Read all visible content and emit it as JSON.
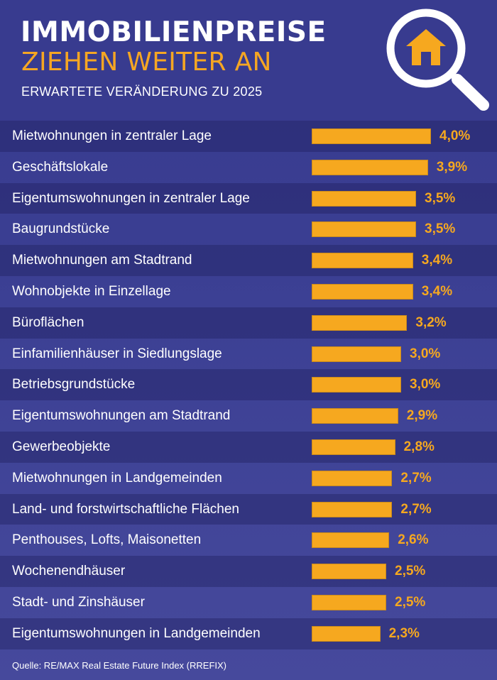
{
  "header": {
    "title_line1": "IMMOBILIENPREISE",
    "title_line2": "ZIEHEN WEITER AN",
    "subtitle": "ERWARTETE VERÄNDERUNG ZU 2025",
    "icon": "magnifier-house-icon"
  },
  "colors": {
    "background": "#3b3f93",
    "bar": "#f6a81f",
    "value_text": "#f6a81f",
    "accent_title": "#f5a623",
    "text": "#ffffff"
  },
  "chart_data": {
    "type": "bar",
    "orientation": "horizontal",
    "title": "IMMOBILIENPREISE ZIEHEN WEITER AN",
    "subtitle": "ERWARTETE VERÄNDERUNG ZU 2025",
    "xlabel": "",
    "ylabel": "",
    "unit": "%",
    "xlim": [
      0,
      4.0
    ],
    "grid": false,
    "categories": [
      "Mietwohnungen in zentraler Lage",
      "Geschäftslokale",
      "Eigentumswohnungen in zentraler Lage",
      "Baugrundstücke",
      "Mietwohnungen am Stadtrand",
      "Wohnobjekte in Einzellage",
      "Büroflächen",
      "Einfamilienhäuser in Siedlungslage",
      "Betriebsgrundstücke",
      "Eigentumswohnungen am Stadtrand",
      "Gewerbeobjekte",
      "Mietwohnungen in Landgemeinden",
      "Land- und forstwirtschaftliche Flächen",
      "Penthouses, Lofts, Maisonetten",
      "Wochenendhäuser",
      "Stadt- und Zinshäuser",
      "Eigentumswohnungen in Landgemeinden"
    ],
    "values": [
      4.0,
      3.9,
      3.5,
      3.5,
      3.4,
      3.4,
      3.2,
      3.0,
      3.0,
      2.9,
      2.8,
      2.7,
      2.7,
      2.6,
      2.5,
      2.5,
      2.3
    ],
    "value_labels": [
      "4,0%",
      "3,9%",
      "3,5%",
      "3,5%",
      "3,4%",
      "3,4%",
      "3,2%",
      "3,0%",
      "3,0%",
      "2,9%",
      "2,8%",
      "2,7%",
      "2,7%",
      "2,6%",
      "2,5%",
      "2,5%",
      "2,3%"
    ]
  },
  "footer": {
    "source": "Quelle: RE/MAX Real Estate Future Index (RREFIX)"
  }
}
